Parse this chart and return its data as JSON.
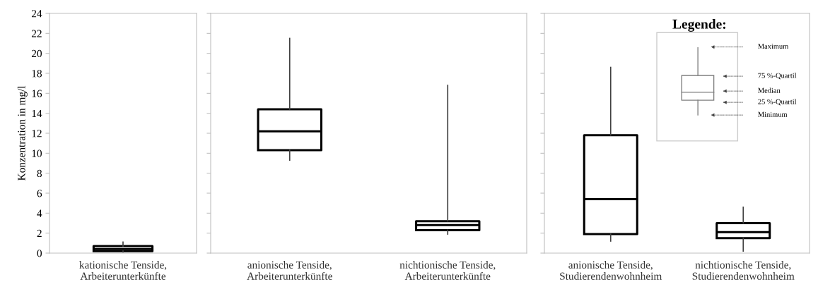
{
  "chart_data": [
    {
      "type": "box",
      "ylabel": "Konzentration in mg/l",
      "categories": [
        "kationische Tenside,\nArbeiterunterkünfte"
      ],
      "ylim": [
        0,
        24
      ],
      "yticks": [
        0,
        2,
        4,
        6,
        8,
        10,
        12,
        14,
        16,
        18,
        20,
        22,
        24
      ],
      "grid": false,
      "boxes": [
        {
          "low": 0.1,
          "q1": 0.2,
          "median": 0.4,
          "q3": 0.7,
          "high": 1.1
        }
      ]
    },
    {
      "type": "box",
      "categories": [
        "anionische Tenside,\nArbeiterunterkünfte",
        "nichtionische Tenside,\nArbeiterunterkünfte"
      ],
      "ylim": [
        0,
        24
      ],
      "yticks": [
        0,
        2,
        4,
        6,
        8,
        10,
        12,
        14,
        16,
        18,
        20,
        22,
        24
      ],
      "tick_labels": "x",
      "grid": false,
      "boxes": [
        {
          "low": 9.3,
          "q1": 10.3,
          "median": 12.2,
          "q3": 14.4,
          "high": 21.5
        },
        {
          "low": 1.9,
          "q1": 2.3,
          "median": 2.8,
          "q3": 3.2,
          "high": 16.8
        }
      ]
    },
    {
      "type": "box",
      "categories": [
        "anionische Tenside,\nStudierendenwohnheim",
        "nichtionische Tenside,\nStudierendenwohnheim"
      ],
      "ylim": [
        0,
        24
      ],
      "yticks": [
        0,
        2,
        4,
        6,
        8,
        10,
        12,
        14,
        16,
        18,
        20,
        22,
        24
      ],
      "tick_labels": "x",
      "grid": false,
      "boxes": [
        {
          "low": 1.2,
          "q1": 1.9,
          "median": 5.4,
          "q3": 11.8,
          "high": 18.6
        },
        {
          "low": 0.2,
          "q1": 1.5,
          "median": 2.1,
          "q3": 3.0,
          "high": 4.6
        }
      ],
      "annotations": [
        "Legende:",
        "Maximum",
        "75 %-Quartil",
        "Median",
        "25 %-Quartil",
        "Minimum"
      ]
    }
  ]
}
